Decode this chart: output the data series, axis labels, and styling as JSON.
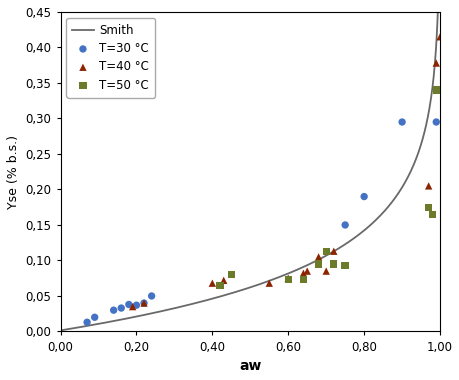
{
  "title": "",
  "xlabel": "aw",
  "ylabel": "Yse (% b.s.)",
  "xlim": [
    0.0,
    1.0
  ],
  "ylim": [
    0.0,
    0.45
  ],
  "xticks": [
    0.0,
    0.2,
    0.4,
    0.6,
    0.8,
    1.0
  ],
  "yticks": [
    0.0,
    0.05,
    0.1,
    0.15,
    0.2,
    0.25,
    0.3,
    0.35,
    0.4,
    0.45
  ],
  "t30_x": [
    0.07,
    0.09,
    0.14,
    0.16,
    0.18,
    0.2,
    0.22,
    0.24,
    0.75,
    0.8,
    0.9,
    0.99
  ],
  "t30_y": [
    0.013,
    0.02,
    0.03,
    0.033,
    0.038,
    0.037,
    0.04,
    0.05,
    0.15,
    0.19,
    0.295,
    0.295
  ],
  "t40_x": [
    0.19,
    0.22,
    0.4,
    0.43,
    0.55,
    0.6,
    0.64,
    0.65,
    0.68,
    0.7,
    0.72,
    0.97,
    0.99,
    1.0
  ],
  "t40_y": [
    0.035,
    0.04,
    0.068,
    0.072,
    0.068,
    0.075,
    0.082,
    0.085,
    0.105,
    0.085,
    0.113,
    0.205,
    0.378,
    0.415
  ],
  "t50_x": [
    0.42,
    0.45,
    0.6,
    0.64,
    0.68,
    0.7,
    0.72,
    0.75,
    0.97,
    0.98,
    0.99
  ],
  "t50_y": [
    0.065,
    0.08,
    0.073,
    0.073,
    0.095,
    0.113,
    0.095,
    0.093,
    0.175,
    0.165,
    0.34
  ],
  "smith_A": 0.0015,
  "smith_B": 0.0875,
  "line_color": "#696969",
  "t30_color": "#4472C4",
  "t40_color": "#8B2500",
  "t50_color": "#6B7B2A",
  "legend_loc": "upper left",
  "marker_size_circle": 28,
  "marker_size_triangle": 28,
  "marker_size_square": 28,
  "linewidth": 1.3
}
